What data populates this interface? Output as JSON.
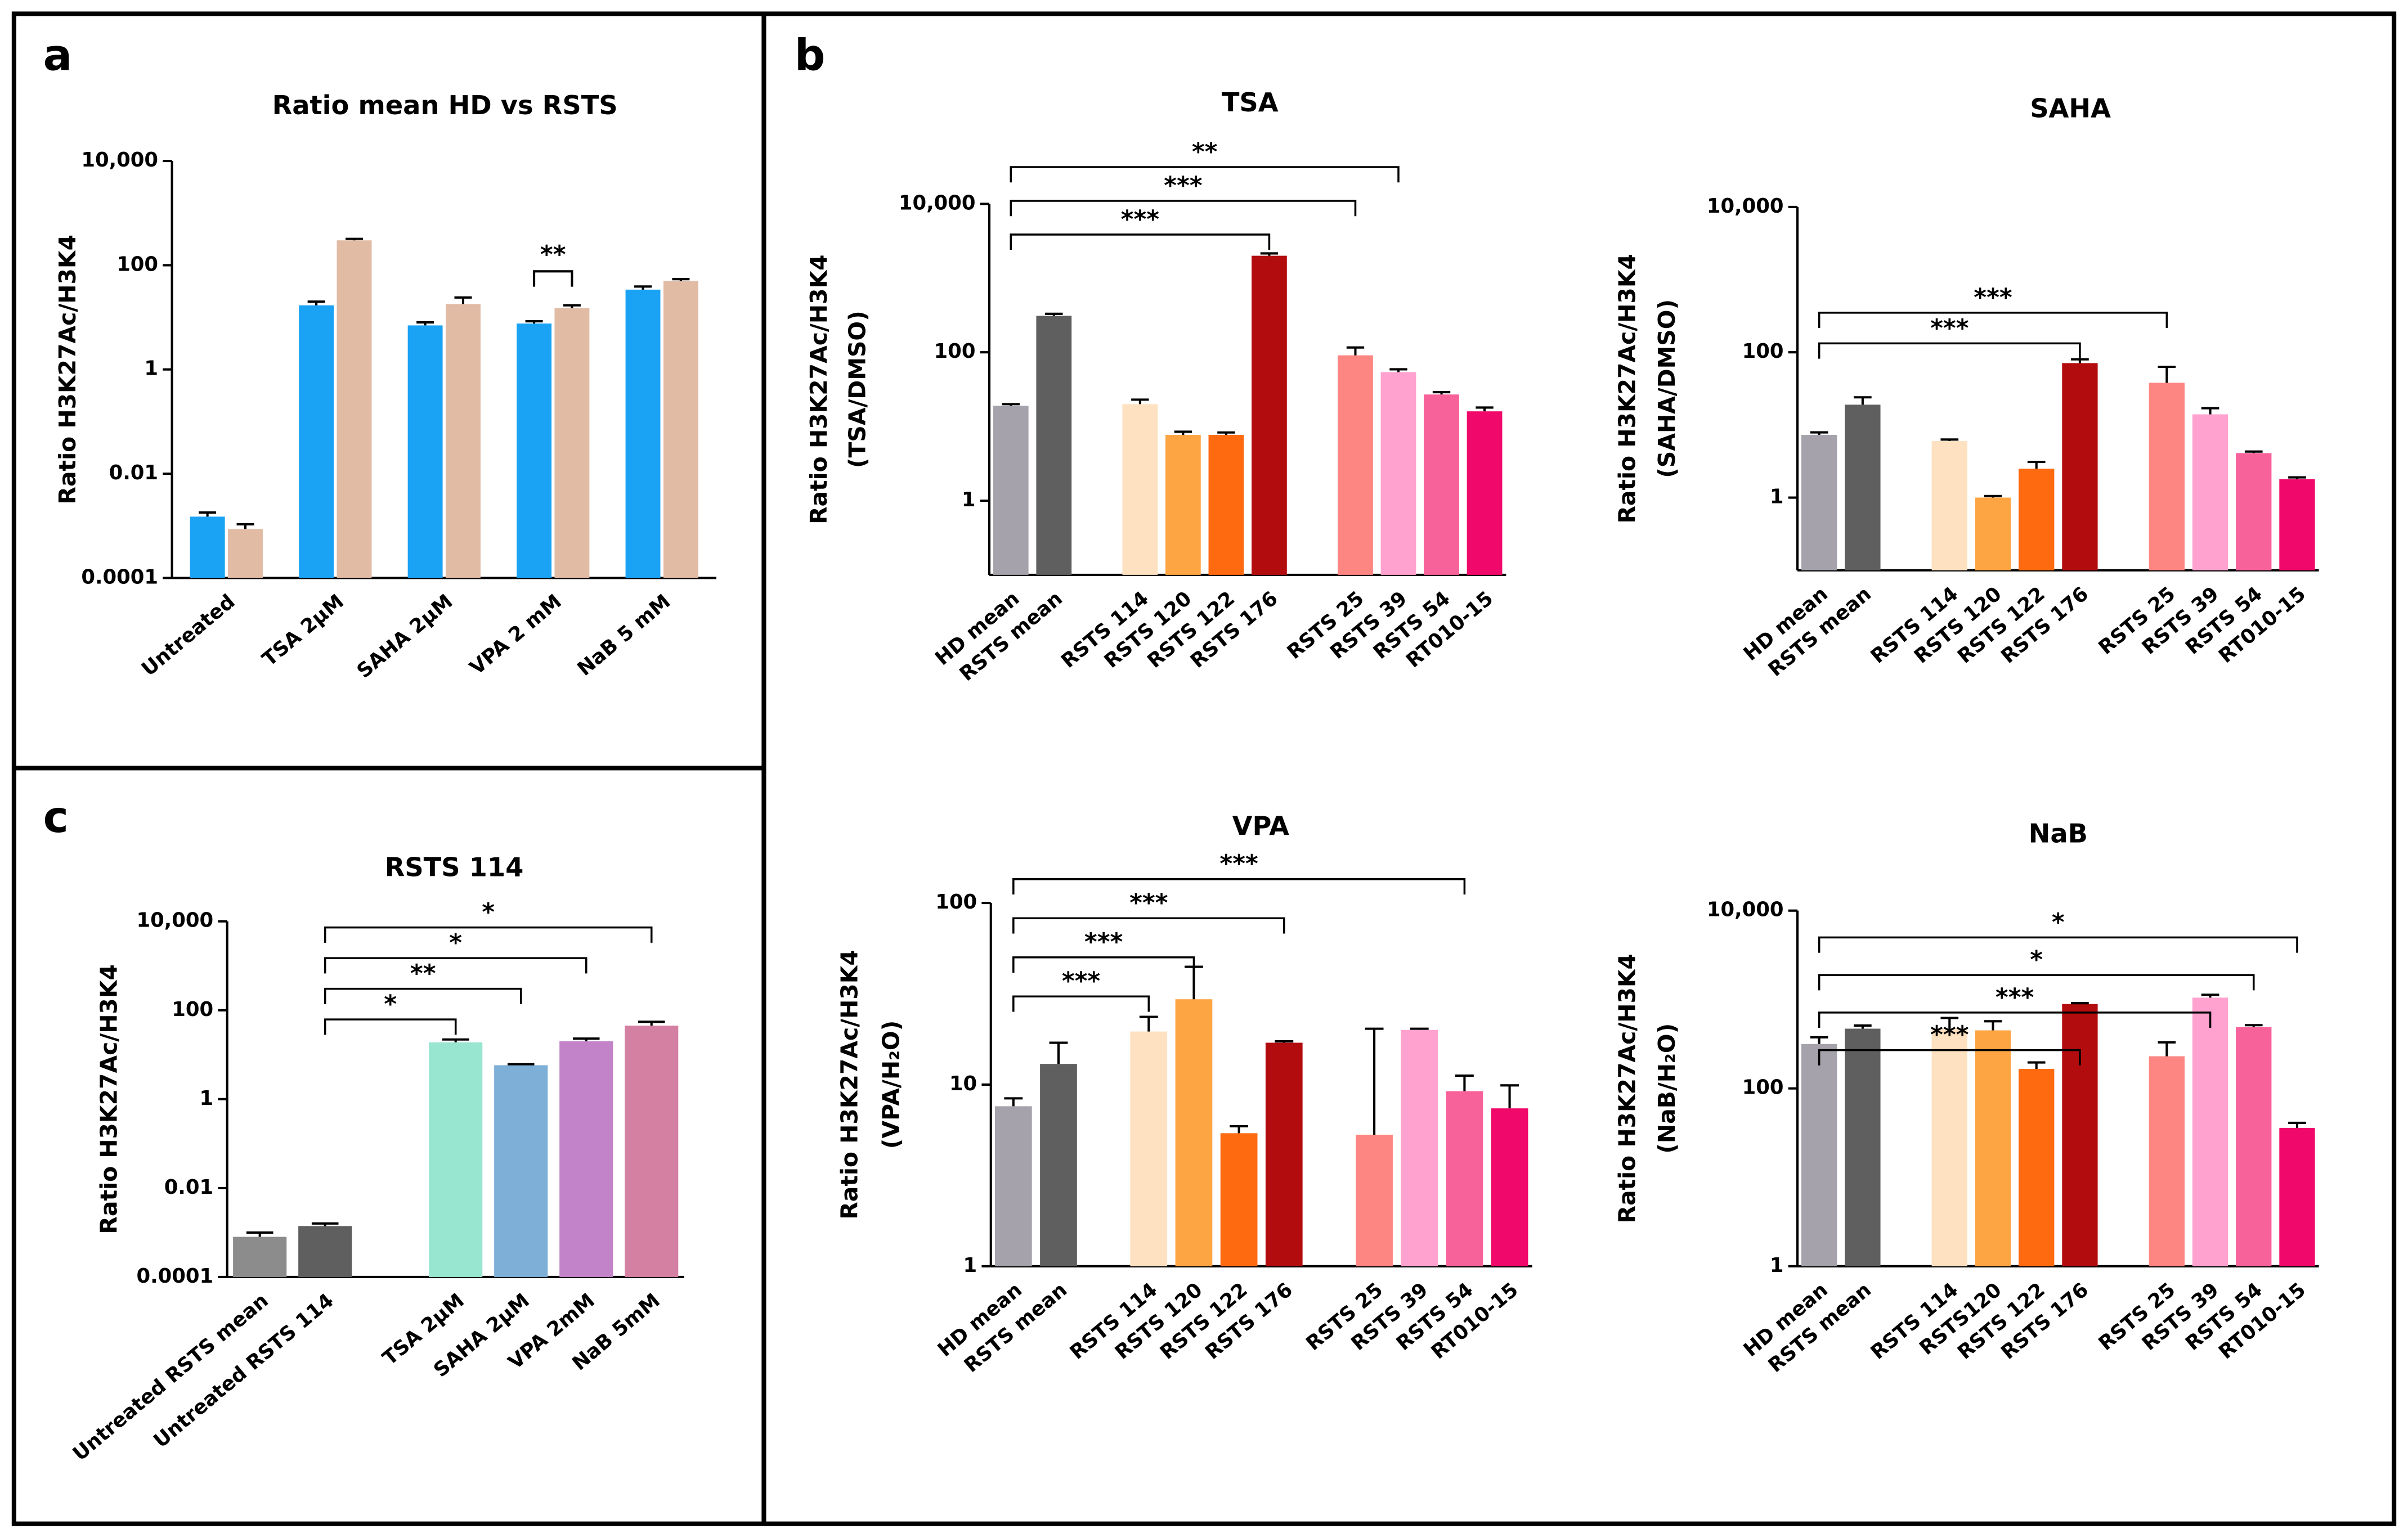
{
  "chart_data": [
    {
      "type": "grouped-bar",
      "panel": "a",
      "title": "Ratio mean HD vs RSTS",
      "ylabel": "Ratio H3K27Ac/H3K4",
      "log": true,
      "categories": [
        "Untreated",
        "TSA 2µM",
        "SAHA 2µM",
        "VPA 2 mM",
        "NaB 5 mM"
      ],
      "series": [
        {
          "color": "#1aa3f5",
          "values": [
            0.0015,
            17,
            7,
            7.6,
            34
          ],
          "errors": [
            0.0003,
            3,
            1,
            0.8,
            5
          ]
        },
        {
          "color": "#e2bba5",
          "values": [
            0.00087,
            300,
            18,
            15,
            50
          ],
          "errors": [
            0.0002,
            20,
            6,
            2,
            4
          ]
        }
      ],
      "ylim": [
        0.0001,
        10000
      ],
      "yticks": [
        0.0001,
        0.01,
        1,
        100,
        {
          "value": 10000,
          "label": "10,000"
        }
      ],
      "brackets": [
        {
          "category": 3,
          "label": "**"
        }
      ]
    },
    {
      "type": "bar",
      "panel": "b",
      "title": "TSA",
      "ylabel": [
        "Ratio H3K27Ac/H3K4",
        "(TSA/DMSO)"
      ],
      "log": true,
      "categories": [
        "HD mean",
        "RSTS mean",
        null,
        "RSTS 114",
        "RSTS 120",
        "RSTS 122",
        "RSTS 176",
        null,
        "RSTS 25",
        "RSTS 39",
        "RSTS 54",
        "RT010-15"
      ],
      "values": [
        19,
        310,
        null,
        20,
        7.7,
        7.7,
        2000,
        null,
        91,
        54,
        27,
        16
      ],
      "errors": [
        1,
        20,
        null,
        3,
        0.8,
        0.6,
        150,
        null,
        25,
        5,
        2,
        2
      ],
      "colors": [
        "#a5a2ab",
        "#5f5f5f",
        null,
        "#fde1c0",
        "#fea543",
        "#fe6a10",
        "#b30c0e",
        null,
        "#fd8582",
        "#ffa2cf",
        "#f8629a",
        "#f0086a"
      ],
      "ylim": [
        0.1,
        10000
      ],
      "yticks": [
        1,
        100,
        {
          "value": 10000,
          "label": "10,000"
        }
      ],
      "brackets": [
        {
          "from": 0,
          "to": 6,
          "label": "***"
        },
        {
          "from": 0,
          "to": 8,
          "label": "***"
        },
        {
          "from": 0,
          "to": 9,
          "label": "**"
        }
      ]
    },
    {
      "type": "bar",
      "title": "SAHA",
      "ylabel": [
        "Ratio H3K27Ac/H3K4",
        "(SAHA/DMSO)"
      ],
      "log": true,
      "categories": [
        "HD mean",
        "RSTS mean",
        null,
        "RSTS 114",
        "RSTS 120",
        "RSTS 122",
        "RSTS 176",
        null,
        "RSTS 25",
        "RSTS 39",
        "RSTS 54",
        "RT010-15"
      ],
      "values": [
        7.3,
        19,
        null,
        6,
        1.0,
        2.5,
        71,
        null,
        38,
        14,
        4.1,
        1.8
      ],
      "errors": [
        0.6,
        5,
        null,
        0.3,
        0.05,
        0.6,
        9,
        null,
        25,
        3,
        0.2,
        0.1
      ],
      "colors": [
        "#a5a2ab",
        "#5f5f5f",
        null,
        "#fde1c0",
        "#fea543",
        "#fe6a10",
        "#b30c0e",
        null,
        "#fd8582",
        "#ffa2cf",
        "#f8629a",
        "#f0086a"
      ],
      "ylim": [
        0.1,
        10000
      ],
      "yticks": [
        1,
        100,
        {
          "value": 10000,
          "label": "10,000"
        }
      ],
      "brackets": [
        {
          "from": 0,
          "to": 6,
          "label": "***"
        },
        {
          "from": 0,
          "to": 8,
          "label": "***"
        }
      ]
    },
    {
      "type": "bar",
      "title": "VPA",
      "ylabel": [
        "Ratio H3K27Ac/H3K4",
        "(VPA/H₂O)"
      ],
      "log": true,
      "categories": [
        "HD mean",
        "RSTS mean",
        null,
        "RSTS 114",
        "RSTS 120",
        "RSTS 122",
        "RSTS 176",
        null,
        "RSTS 25",
        "RSTS 39",
        "RSTS 54",
        "RT010-15"
      ],
      "values": [
        7.6,
        13,
        null,
        19.6,
        29.5,
        5.4,
        17,
        null,
        5.3,
        20,
        9.2,
        7.4
      ],
      "errors": [
        0.8,
        4,
        null,
        4,
        15,
        0.5,
        0.3,
        null,
        15,
        0.3,
        2,
        2.5
      ],
      "colors": [
        "#a5a2ab",
        "#5f5f5f",
        null,
        "#fde1c0",
        "#fea543",
        "#fe6a10",
        "#b30c0e",
        null,
        "#fd8582",
        "#ffa2cf",
        "#f8629a",
        "#f0086a"
      ],
      "ylim": [
        1,
        100
      ],
      "yticks": [
        1,
        10,
        100
      ],
      "brackets": [
        {
          "from": 0,
          "to": 3,
          "label": "***"
        },
        {
          "from": 0,
          "to": 4,
          "label": "***"
        },
        {
          "from": 0,
          "to": 6,
          "label": "***"
        },
        {
          "from": 0,
          "to": 10,
          "label": "***"
        }
      ]
    },
    {
      "type": "bar",
      "title": "NaB",
      "ylabel": [
        "Ratio H3K27Ac/H3K4",
        "(NaB/H₂O)"
      ],
      "log": true,
      "categories": [
        "HD mean",
        "RSTS mean",
        null,
        "RSTS 114",
        "RSTS120",
        "RSTS 122",
        "RSTS 176",
        null,
        "RSTS 25",
        "RSTS 39",
        "RSTS 54",
        "RT010-15"
      ],
      "values": [
        316,
        470,
        null,
        470,
        450,
        166,
        890,
        null,
        230,
        1050,
        490,
        36
      ],
      "errors": [
        60,
        40,
        null,
        150,
        120,
        30,
        20,
        null,
        100,
        80,
        25,
        5
      ],
      "colors": [
        "#a5a2ab",
        "#5f5f5f",
        null,
        "#fde1c0",
        "#fea543",
        "#fe6a10",
        "#b30c0e",
        null,
        "#fd8582",
        "#ffa2cf",
        "#f8629a",
        "#f0086a"
      ],
      "ylim": [
        1,
        10000
      ],
      "yticks": [
        1,
        100,
        {
          "value": 10000,
          "label": "10,000"
        }
      ],
      "brackets": [
        {
          "from": 0,
          "to": 6,
          "label": "***"
        },
        {
          "from": 0,
          "to": 9,
          "label": "***"
        },
        {
          "from": 0,
          "to": 10,
          "label": "*"
        },
        {
          "from": 0,
          "to": 11,
          "label": "*"
        }
      ]
    },
    {
      "type": "bar",
      "panel": "c",
      "title": "RSTS 114",
      "ylabel": "Ratio H3K27Ac/H3K4",
      "log": true,
      "categories": [
        "Untreated RSTS mean",
        "Untreated RSTS 114",
        null,
        "TSA 2µM",
        "SAHA 2µM",
        "VPA 2mM",
        "NaB 5mM"
      ],
      "values": [
        0.0008,
        0.0014,
        null,
        19,
        5.8,
        20,
        45
      ],
      "errors": [
        0.0002,
        0.0002,
        null,
        3,
        0.3,
        3,
        10
      ],
      "colors": [
        "#8c8c8c",
        "#5f5f5f",
        null,
        "#99e6d0",
        "#7eafd6",
        "#c383c8",
        "#d480a2"
      ],
      "ylim": [
        0.0001,
        10000
      ],
      "yticks": [
        0.0001,
        0.01,
        1,
        100,
        {
          "value": 10000,
          "label": "10,000"
        }
      ],
      "brackets": [
        {
          "from": 1,
          "to": 3,
          "label": "*"
        },
        {
          "from": 1,
          "to": 4,
          "label": "**"
        },
        {
          "from": 1,
          "to": 5,
          "label": "*"
        },
        {
          "from": 1,
          "to": 6,
          "label": "*"
        }
      ]
    }
  ]
}
